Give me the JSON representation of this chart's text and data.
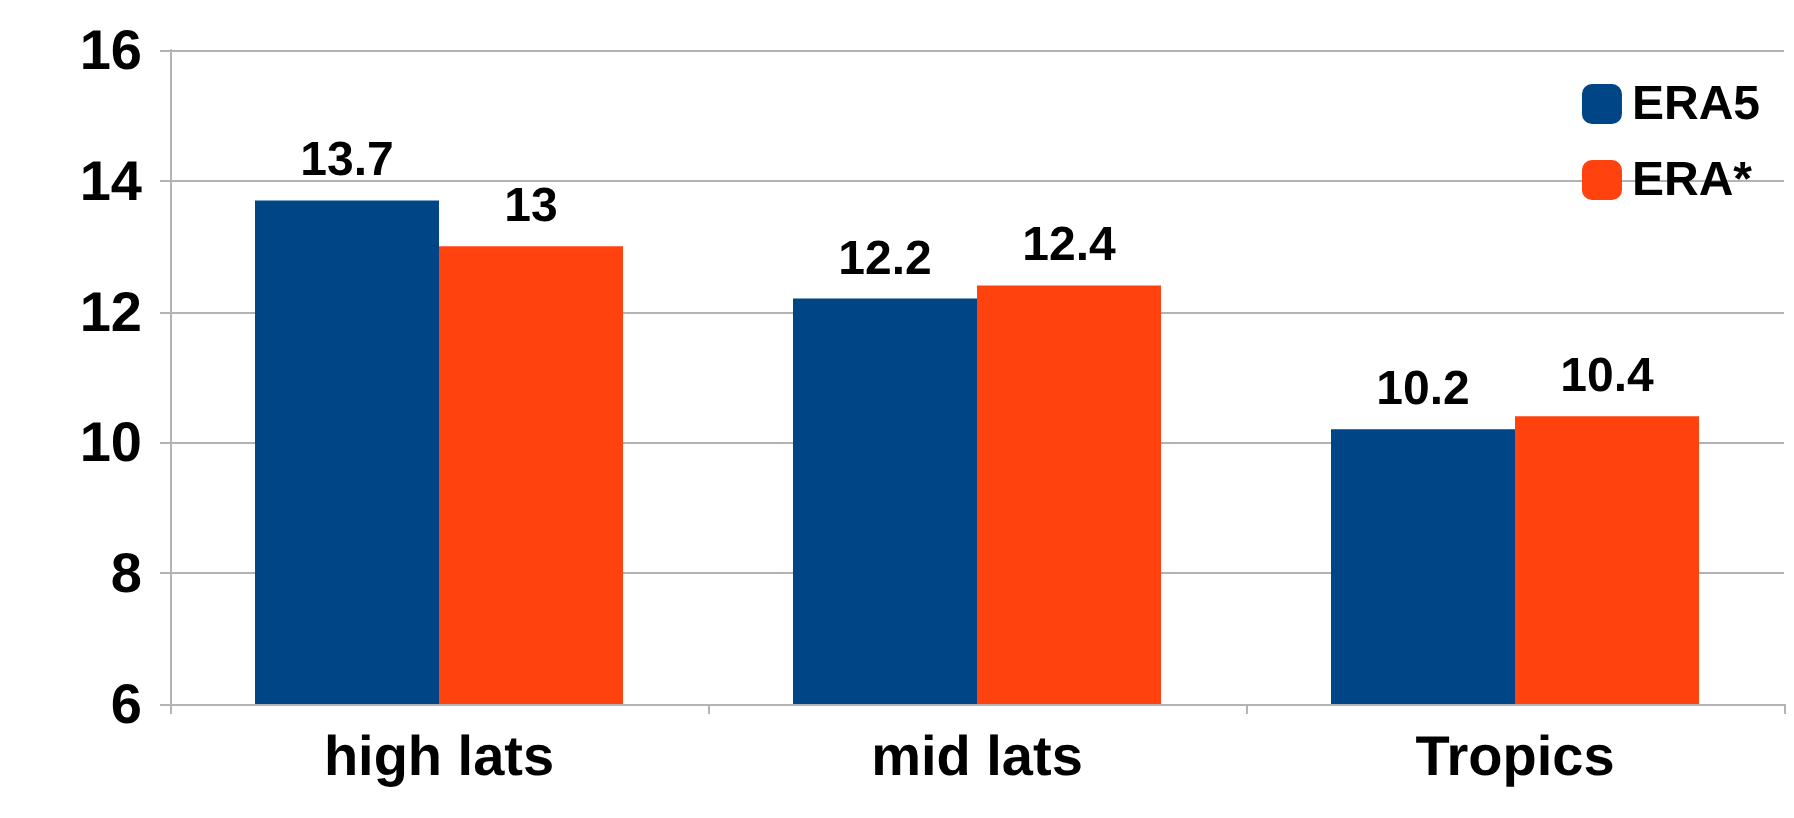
{
  "chart_data": {
    "type": "bar",
    "categories": [
      "high lats",
      "mid lats",
      "Tropics"
    ],
    "series": [
      {
        "name": "ERA5",
        "color": "#004586",
        "values": [
          13.7,
          12.2,
          10.2
        ]
      },
      {
        "name": "ERA*",
        "color": "#ff420e",
        "values": [
          13,
          12.4,
          10.4
        ]
      }
    ],
    "ylim": [
      6,
      16
    ],
    "yticks": [
      6,
      8,
      10,
      12,
      14,
      16
    ],
    "grid": "y",
    "legend": "top right",
    "data_labels": true
  }
}
